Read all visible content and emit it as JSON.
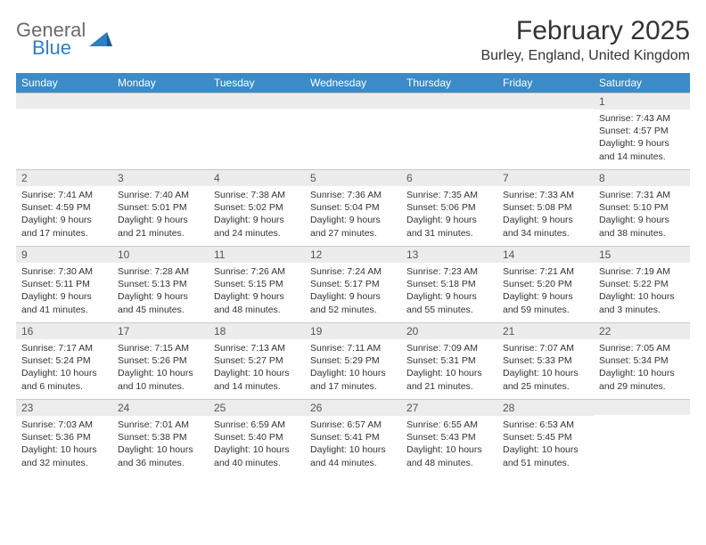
{
  "brand": {
    "line1": "General",
    "line2": "Blue",
    "color1": "#6b6b6b",
    "color2": "#2f7fc1"
  },
  "title": "February 2025",
  "location": "Burley, England, United Kingdom",
  "header_bg": "#3b8bc8",
  "daynum_bg": "#ececec",
  "border_color": "#c9c9c9",
  "weekdays": [
    "Sunday",
    "Monday",
    "Tuesday",
    "Wednesday",
    "Thursday",
    "Friday",
    "Saturday"
  ],
  "weeks": [
    [
      {
        "n": "",
        "lines": []
      },
      {
        "n": "",
        "lines": []
      },
      {
        "n": "",
        "lines": []
      },
      {
        "n": "",
        "lines": []
      },
      {
        "n": "",
        "lines": []
      },
      {
        "n": "",
        "lines": []
      },
      {
        "n": "1",
        "lines": [
          "Sunrise: 7:43 AM",
          "Sunset: 4:57 PM",
          "Daylight: 9 hours and 14 minutes."
        ]
      }
    ],
    [
      {
        "n": "2",
        "lines": [
          "Sunrise: 7:41 AM",
          "Sunset: 4:59 PM",
          "Daylight: 9 hours and 17 minutes."
        ]
      },
      {
        "n": "3",
        "lines": [
          "Sunrise: 7:40 AM",
          "Sunset: 5:01 PM",
          "Daylight: 9 hours and 21 minutes."
        ]
      },
      {
        "n": "4",
        "lines": [
          "Sunrise: 7:38 AM",
          "Sunset: 5:02 PM",
          "Daylight: 9 hours and 24 minutes."
        ]
      },
      {
        "n": "5",
        "lines": [
          "Sunrise: 7:36 AM",
          "Sunset: 5:04 PM",
          "Daylight: 9 hours and 27 minutes."
        ]
      },
      {
        "n": "6",
        "lines": [
          "Sunrise: 7:35 AM",
          "Sunset: 5:06 PM",
          "Daylight: 9 hours and 31 minutes."
        ]
      },
      {
        "n": "7",
        "lines": [
          "Sunrise: 7:33 AM",
          "Sunset: 5:08 PM",
          "Daylight: 9 hours and 34 minutes."
        ]
      },
      {
        "n": "8",
        "lines": [
          "Sunrise: 7:31 AM",
          "Sunset: 5:10 PM",
          "Daylight: 9 hours and 38 minutes."
        ]
      }
    ],
    [
      {
        "n": "9",
        "lines": [
          "Sunrise: 7:30 AM",
          "Sunset: 5:11 PM",
          "Daylight: 9 hours and 41 minutes."
        ]
      },
      {
        "n": "10",
        "lines": [
          "Sunrise: 7:28 AM",
          "Sunset: 5:13 PM",
          "Daylight: 9 hours and 45 minutes."
        ]
      },
      {
        "n": "11",
        "lines": [
          "Sunrise: 7:26 AM",
          "Sunset: 5:15 PM",
          "Daylight: 9 hours and 48 minutes."
        ]
      },
      {
        "n": "12",
        "lines": [
          "Sunrise: 7:24 AM",
          "Sunset: 5:17 PM",
          "Daylight: 9 hours and 52 minutes."
        ]
      },
      {
        "n": "13",
        "lines": [
          "Sunrise: 7:23 AM",
          "Sunset: 5:18 PM",
          "Daylight: 9 hours and 55 minutes."
        ]
      },
      {
        "n": "14",
        "lines": [
          "Sunrise: 7:21 AM",
          "Sunset: 5:20 PM",
          "Daylight: 9 hours and 59 minutes."
        ]
      },
      {
        "n": "15",
        "lines": [
          "Sunrise: 7:19 AM",
          "Sunset: 5:22 PM",
          "Daylight: 10 hours and 3 minutes."
        ]
      }
    ],
    [
      {
        "n": "16",
        "lines": [
          "Sunrise: 7:17 AM",
          "Sunset: 5:24 PM",
          "Daylight: 10 hours and 6 minutes."
        ]
      },
      {
        "n": "17",
        "lines": [
          "Sunrise: 7:15 AM",
          "Sunset: 5:26 PM",
          "Daylight: 10 hours and 10 minutes."
        ]
      },
      {
        "n": "18",
        "lines": [
          "Sunrise: 7:13 AM",
          "Sunset: 5:27 PM",
          "Daylight: 10 hours and 14 minutes."
        ]
      },
      {
        "n": "19",
        "lines": [
          "Sunrise: 7:11 AM",
          "Sunset: 5:29 PM",
          "Daylight: 10 hours and 17 minutes."
        ]
      },
      {
        "n": "20",
        "lines": [
          "Sunrise: 7:09 AM",
          "Sunset: 5:31 PM",
          "Daylight: 10 hours and 21 minutes."
        ]
      },
      {
        "n": "21",
        "lines": [
          "Sunrise: 7:07 AM",
          "Sunset: 5:33 PM",
          "Daylight: 10 hours and 25 minutes."
        ]
      },
      {
        "n": "22",
        "lines": [
          "Sunrise: 7:05 AM",
          "Sunset: 5:34 PM",
          "Daylight: 10 hours and 29 minutes."
        ]
      }
    ],
    [
      {
        "n": "23",
        "lines": [
          "Sunrise: 7:03 AM",
          "Sunset: 5:36 PM",
          "Daylight: 10 hours and 32 minutes."
        ]
      },
      {
        "n": "24",
        "lines": [
          "Sunrise: 7:01 AM",
          "Sunset: 5:38 PM",
          "Daylight: 10 hours and 36 minutes."
        ]
      },
      {
        "n": "25",
        "lines": [
          "Sunrise: 6:59 AM",
          "Sunset: 5:40 PM",
          "Daylight: 10 hours and 40 minutes."
        ]
      },
      {
        "n": "26",
        "lines": [
          "Sunrise: 6:57 AM",
          "Sunset: 5:41 PM",
          "Daylight: 10 hours and 44 minutes."
        ]
      },
      {
        "n": "27",
        "lines": [
          "Sunrise: 6:55 AM",
          "Sunset: 5:43 PM",
          "Daylight: 10 hours and 48 minutes."
        ]
      },
      {
        "n": "28",
        "lines": [
          "Sunrise: 6:53 AM",
          "Sunset: 5:45 PM",
          "Daylight: 10 hours and 51 minutes."
        ]
      },
      {
        "n": "",
        "lines": []
      }
    ]
  ]
}
